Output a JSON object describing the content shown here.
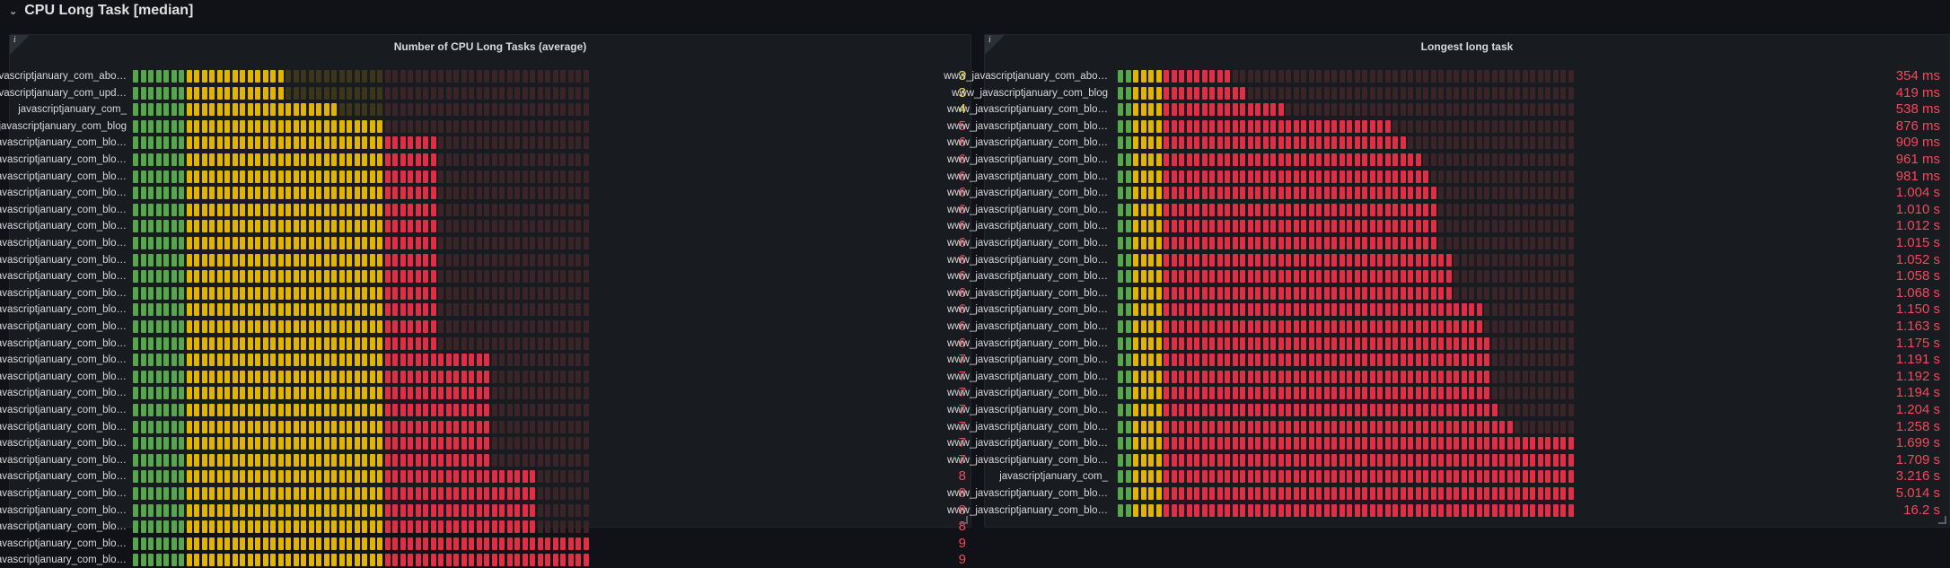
{
  "row": {
    "title": "CPU Long Task [median]",
    "collapse_icon": "chevron-down-icon"
  },
  "colors": {
    "green": "#56a64b",
    "yellow": "#e0b400",
    "red": "#e02f44",
    "dim_green": "#23351f",
    "dim_yellow": "#3b3519",
    "dim_red": "#3a2428",
    "text_red": "#f2495c",
    "text_yellow": "#fade2a"
  },
  "panels": [
    {
      "title": "Number of CPU Long Tasks (average)",
      "info_icon": "info-icon",
      "max_value": 9,
      "thresholds": {
        "green_below": 1,
        "yellow_below": 5
      },
      "rows": [
        {
          "label": "www_javascriptjanuary_com_abo…",
          "value": 3,
          "display": "3"
        },
        {
          "label": "www_javascriptjanuary_com_upd…",
          "value": 3,
          "display": "3"
        },
        {
          "label": "javascriptjanuary_com_",
          "value": 4,
          "display": "4"
        },
        {
          "label": "www_javascriptjanuary_com_blog",
          "value": 5,
          "display": "5"
        },
        {
          "label": "www_javascriptjanuary_com_blo…",
          "value": 6,
          "display": "6"
        },
        {
          "label": "www_javascriptjanuary_com_blo…",
          "value": 6,
          "display": "6"
        },
        {
          "label": "www_javascriptjanuary_com_blo…",
          "value": 6,
          "display": "6"
        },
        {
          "label": "www_javascriptjanuary_com_blo…",
          "value": 6,
          "display": "6"
        },
        {
          "label": "www_javascriptjanuary_com_blo…",
          "value": 6,
          "display": "6"
        },
        {
          "label": "www_javascriptjanuary_com_blo…",
          "value": 6,
          "display": "6"
        },
        {
          "label": "www_javascriptjanuary_com_blo…",
          "value": 6,
          "display": "6"
        },
        {
          "label": "www_javascriptjanuary_com_blo…",
          "value": 6,
          "display": "6"
        },
        {
          "label": "www_javascriptjanuary_com_blo…",
          "value": 6,
          "display": "6"
        },
        {
          "label": "www_javascriptjanuary_com_blo…",
          "value": 6,
          "display": "6"
        },
        {
          "label": "www_javascriptjanuary_com_blo…",
          "value": 6,
          "display": "6"
        },
        {
          "label": "www_javascriptjanuary_com_blo…",
          "value": 6,
          "display": "6"
        },
        {
          "label": "www_javascriptjanuary_com_blo…",
          "value": 6,
          "display": "6"
        },
        {
          "label": "www_javascriptjanuary_com_blo…",
          "value": 7,
          "display": "7"
        },
        {
          "label": "www_javascriptjanuary_com_blo…",
          "value": 7,
          "display": "7"
        },
        {
          "label": "www_javascriptjanuary_com_blo…",
          "value": 7,
          "display": "7"
        },
        {
          "label": "www_javascriptjanuary_com_blo…",
          "value": 7,
          "display": "7"
        },
        {
          "label": "www_javascriptjanuary_com_blo…",
          "value": 7,
          "display": "7"
        },
        {
          "label": "www_javascriptjanuary_com_blo…",
          "value": 7,
          "display": "7"
        },
        {
          "label": "www_javascriptjanuary_com_blo…",
          "value": 7,
          "display": "7"
        },
        {
          "label": "www_javascriptjanuary_com_blo…",
          "value": 8,
          "display": "8"
        },
        {
          "label": "www_javascriptjanuary_com_blo…",
          "value": 8,
          "display": "8"
        },
        {
          "label": "www_javascriptjanuary_com_blo…",
          "value": 8,
          "display": "8"
        },
        {
          "label": "www_javascriptjanuary_com_blo…",
          "value": 8,
          "display": "8"
        },
        {
          "label": "www_javascriptjanuary_com_blo…",
          "value": 9,
          "display": "9"
        },
        {
          "label": "www_javascriptjanuary_com_blo…",
          "value": 9,
          "display": "9"
        }
      ]
    },
    {
      "title": "Longest long task",
      "info_icon": "info-icon",
      "max_value": 1450,
      "thresholds": {
        "green_below": 50,
        "yellow_below": 150
      },
      "rows": [
        {
          "label": "www_javascriptjanuary_com_abo…",
          "value": 354,
          "display": "354 ms"
        },
        {
          "label": "www_javascriptjanuary_com_blog",
          "value": 419,
          "display": "419 ms"
        },
        {
          "label": "www_javascriptjanuary_com_blo…",
          "value": 538,
          "display": "538 ms"
        },
        {
          "label": "www_javascriptjanuary_com_blo…",
          "value": 876,
          "display": "876 ms"
        },
        {
          "label": "www_javascriptjanuary_com_blo…",
          "value": 909,
          "display": "909 ms"
        },
        {
          "label": "www_javascriptjanuary_com_blo…",
          "value": 961,
          "display": "961 ms"
        },
        {
          "label": "www_javascriptjanuary_com_blo…",
          "value": 981,
          "display": "981 ms"
        },
        {
          "label": "www_javascriptjanuary_com_blo…",
          "value": 1004,
          "display": "1.004 s"
        },
        {
          "label": "www_javascriptjanuary_com_blo…",
          "value": 1010,
          "display": "1.010 s"
        },
        {
          "label": "www_javascriptjanuary_com_blo…",
          "value": 1012,
          "display": "1.012 s"
        },
        {
          "label": "www_javascriptjanuary_com_blo…",
          "value": 1015,
          "display": "1.015 s"
        },
        {
          "label": "www_javascriptjanuary_com_blo…",
          "value": 1052,
          "display": "1.052 s"
        },
        {
          "label": "www_javascriptjanuary_com_blo…",
          "value": 1058,
          "display": "1.058 s"
        },
        {
          "label": "www_javascriptjanuary_com_blo…",
          "value": 1068,
          "display": "1.068 s"
        },
        {
          "label": "www_javascriptjanuary_com_blo…",
          "value": 1150,
          "display": "1.150 s"
        },
        {
          "label": "www_javascriptjanuary_com_blo…",
          "value": 1163,
          "display": "1.163 s"
        },
        {
          "label": "www_javascriptjanuary_com_blo…",
          "value": 1175,
          "display": "1.175 s"
        },
        {
          "label": "www_javascriptjanuary_com_blo…",
          "value": 1191,
          "display": "1.191 s"
        },
        {
          "label": "www_javascriptjanuary_com_blo…",
          "value": 1192,
          "display": "1.192 s"
        },
        {
          "label": "www_javascriptjanuary_com_blo…",
          "value": 1194,
          "display": "1.194 s"
        },
        {
          "label": "www_javascriptjanuary_com_blo…",
          "value": 1204,
          "display": "1.204 s"
        },
        {
          "label": "www_javascriptjanuary_com_blo…",
          "value": 1258,
          "display": "1.258 s"
        },
        {
          "label": "www_javascriptjanuary_com_blo…",
          "value": 1699,
          "display": "1.699 s"
        },
        {
          "label": "www_javascriptjanuary_com_blo…",
          "value": 1709,
          "display": "1.709 s"
        },
        {
          "label": "javascriptjanuary_com_",
          "value": 3216,
          "display": "3.216 s"
        },
        {
          "label": "www_javascriptjanuary_com_blo…",
          "value": 5014,
          "display": "5.014 s"
        },
        {
          "label": "www_javascriptjanuary_com_blo…",
          "value": 16200,
          "display": "16.2 s"
        }
      ]
    }
  ]
}
